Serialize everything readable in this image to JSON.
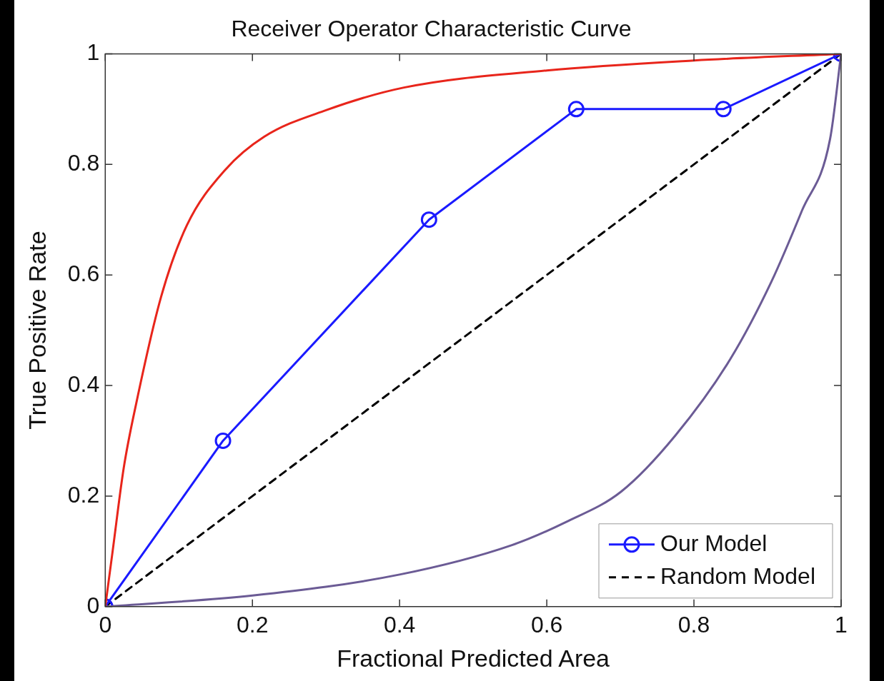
{
  "chart_data": {
    "type": "line",
    "title": "Receiver Operator Characteristic Curve",
    "xlabel": "Fractional Predicted Area",
    "ylabel": "True Positive Rate",
    "xlim": [
      0,
      1
    ],
    "ylim": [
      0,
      1
    ],
    "xticks": [
      0,
      0.2,
      0.4,
      0.6,
      0.8,
      1
    ],
    "yticks": [
      0,
      0.2,
      0.4,
      0.6,
      0.8,
      1
    ],
    "grid": false,
    "legend": "bottom right",
    "series": [
      {
        "color": "#e8251b",
        "marker": "none",
        "line_style": "solid",
        "x": [
          0,
          0.01,
          0.025,
          0.042,
          0.076,
          0.111,
          0.163,
          0.216,
          0.3,
          0.406,
          0.6,
          0.8,
          1
        ],
        "values": [
          0,
          0.1,
          0.25,
          0.367,
          0.561,
          0.69,
          0.79,
          0.85,
          0.898,
          0.939,
          0.97,
          0.988,
          1
        ]
      },
      {
        "color": "#6b5b95",
        "marker": "none",
        "line_style": "solid",
        "x": [
          0,
          0.2,
          0.4,
          0.552,
          0.626,
          0.701,
          0.775,
          0.85,
          0.905,
          0.947,
          0.985,
          1
        ],
        "values": [
          0,
          0.02,
          0.058,
          0.111,
          0.153,
          0.208,
          0.31,
          0.449,
          0.587,
          0.717,
          0.846,
          1
        ]
      },
      {
        "name": "Our Model",
        "color": "#1a1aff",
        "marker": "circle",
        "line_style": "solid",
        "x": [
          0,
          0.16,
          0.44,
          0.64,
          0.84,
          1
        ],
        "values": [
          0,
          0.3,
          0.7,
          0.9,
          0.9,
          1
        ]
      },
      {
        "name": "Random Model",
        "color": "#000000",
        "marker": "none",
        "line_style": "dashed",
        "x": [
          0,
          1
        ],
        "values": [
          0,
          1
        ]
      }
    ]
  }
}
